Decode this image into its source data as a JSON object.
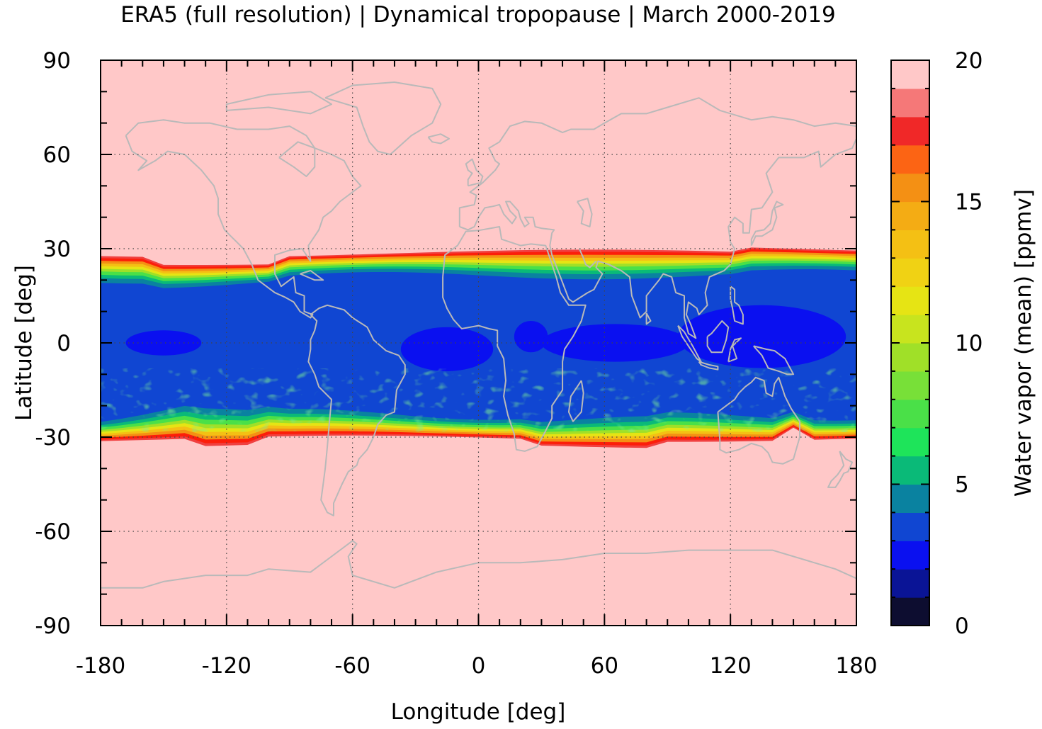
{
  "title": "ERA5 (full resolution) | Dynamical tropopause | March 2000-2019",
  "chart_data": {
    "type": "heatmap",
    "xlabel": "Longitude [deg]",
    "ylabel": "Latitude [deg]",
    "xlim": [
      -180,
      180
    ],
    "ylim": [
      -90,
      90
    ],
    "xticks": [
      "-180",
      "-120",
      "-60",
      "0",
      "60",
      "120",
      "180"
    ],
    "yticks": [
      "90",
      "60",
      "30",
      "0",
      "-30",
      "-60",
      "-90"
    ],
    "grid": true,
    "colorbar": {
      "label": "Water vapor (mean) [ppmv]",
      "range": [
        0,
        20
      ],
      "ticks": [
        "20",
        "15",
        "10",
        "5",
        "0"
      ],
      "levels": 20,
      "colors": [
        "#0d0d30",
        "#0a1496",
        "#0a10f0",
        "#1046d2",
        "#0a82a0",
        "#0aba78",
        "#1ee45a",
        "#4ae048",
        "#78e038",
        "#a0e028",
        "#c8e41e",
        "#e6e414",
        "#f0d214",
        "#f4c014",
        "#f4ac14",
        "#f49014",
        "#fc6414",
        "#fc1e0a",
        "#f01e1e",
        "#e63232"
      ]
    },
    "field_description": "Mean water vapor at the dynamical tropopause; ~2-4 ppmv over the deep tropics, rising to >15 ppmv near 30N and 30S, ~20 ppmv poleward",
    "overlay": "coastlines"
  }
}
